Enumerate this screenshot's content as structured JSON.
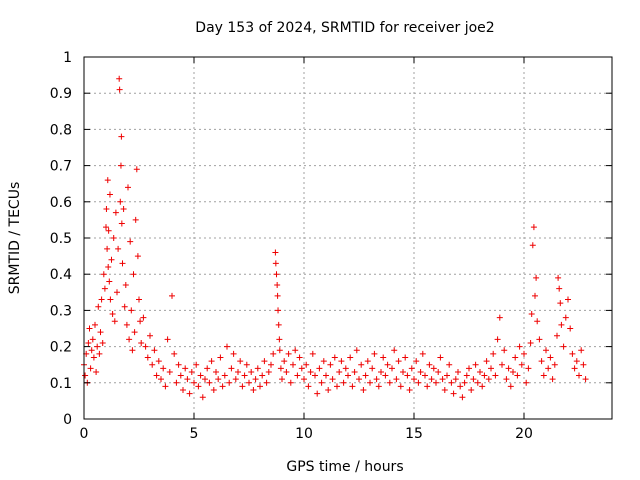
{
  "chart_data": {
    "type": "scatter",
    "title": "Day 153 of 2024, SRMTID for receiver joe2",
    "xlabel": "GPS time / hours",
    "ylabel": "SRMTID / TECUs",
    "xlim": [
      0,
      24
    ],
    "ylim": [
      0,
      1
    ],
    "xticks": [
      "0",
      "5",
      "10",
      "15",
      "20"
    ],
    "yticks": [
      "0",
      "0.1",
      "0.2",
      "0.3",
      "0.4",
      "0.5",
      "0.6",
      "0.7",
      "0.8",
      "0.9",
      "1"
    ],
    "grid": true,
    "marker": "plus",
    "color": "#ee0000",
    "series": [
      {
        "name": "SRMTID",
        "points": [
          [
            0.0,
            0.15
          ],
          [
            0.05,
            0.12
          ],
          [
            0.1,
            0.18
          ],
          [
            0.15,
            0.1
          ],
          [
            0.2,
            0.21
          ],
          [
            0.25,
            0.25
          ],
          [
            0.3,
            0.14
          ],
          [
            0.35,
            0.19
          ],
          [
            0.4,
            0.22
          ],
          [
            0.45,
            0.17
          ],
          [
            0.5,
            0.26
          ],
          [
            0.55,
            0.13
          ],
          [
            0.6,
            0.2
          ],
          [
            0.65,
            0.31
          ],
          [
            0.7,
            0.18
          ],
          [
            0.75,
            0.24
          ],
          [
            0.8,
            0.33
          ],
          [
            0.85,
            0.21
          ],
          [
            0.9,
            0.4
          ],
          [
            0.95,
            0.36
          ],
          [
            1.0,
            0.53
          ],
          [
            1.02,
            0.58
          ],
          [
            1.05,
            0.47
          ],
          [
            1.08,
            0.66
          ],
          [
            1.1,
            0.42
          ],
          [
            1.12,
            0.52
          ],
          [
            1.15,
            0.38
          ],
          [
            1.18,
            0.62
          ],
          [
            1.2,
            0.33
          ],
          [
            1.25,
            0.44
          ],
          [
            1.3,
            0.29
          ],
          [
            1.35,
            0.5
          ],
          [
            1.4,
            0.27
          ],
          [
            1.45,
            0.57
          ],
          [
            1.5,
            0.35
          ],
          [
            1.55,
            0.47
          ],
          [
            1.6,
            0.94
          ],
          [
            1.62,
            0.91
          ],
          [
            1.65,
            0.6
          ],
          [
            1.68,
            0.7
          ],
          [
            1.7,
            0.78
          ],
          [
            1.72,
            0.54
          ],
          [
            1.75,
            0.43
          ],
          [
            1.8,
            0.58
          ],
          [
            1.85,
            0.31
          ],
          [
            1.9,
            0.37
          ],
          [
            1.95,
            0.26
          ],
          [
            2.0,
            0.64
          ],
          [
            2.05,
            0.22
          ],
          [
            2.1,
            0.49
          ],
          [
            2.15,
            0.3
          ],
          [
            2.2,
            0.19
          ],
          [
            2.25,
            0.4
          ],
          [
            2.3,
            0.24
          ],
          [
            2.35,
            0.55
          ],
          [
            2.4,
            0.69
          ],
          [
            2.45,
            0.45
          ],
          [
            2.5,
            0.33
          ],
          [
            2.55,
            0.27
          ],
          [
            2.6,
            0.21
          ],
          [
            2.7,
            0.28
          ],
          [
            2.8,
            0.2
          ],
          [
            2.9,
            0.17
          ],
          [
            3.0,
            0.23
          ],
          [
            3.1,
            0.15
          ],
          [
            3.2,
            0.19
          ],
          [
            3.3,
            0.12
          ],
          [
            3.4,
            0.16
          ],
          [
            3.5,
            0.11
          ],
          [
            3.6,
            0.14
          ],
          [
            3.7,
            0.09
          ],
          [
            3.8,
            0.22
          ],
          [
            3.9,
            0.13
          ],
          [
            4.0,
            0.34
          ],
          [
            4.1,
            0.18
          ],
          [
            4.2,
            0.1
          ],
          [
            4.3,
            0.15
          ],
          [
            4.4,
            0.12
          ],
          [
            4.5,
            0.08
          ],
          [
            4.6,
            0.14
          ],
          [
            4.7,
            0.11
          ],
          [
            4.8,
            0.07
          ],
          [
            4.9,
            0.13
          ],
          [
            5.0,
            0.1
          ],
          [
            5.1,
            0.15
          ],
          [
            5.2,
            0.09
          ],
          [
            5.3,
            0.12
          ],
          [
            5.4,
            0.06
          ],
          [
            5.5,
            0.11
          ],
          [
            5.6,
            0.14
          ],
          [
            5.7,
            0.1
          ],
          [
            5.8,
            0.16
          ],
          [
            5.9,
            0.08
          ],
          [
            6.0,
            0.13
          ],
          [
            6.1,
            0.11
          ],
          [
            6.2,
            0.17
          ],
          [
            6.3,
            0.09
          ],
          [
            6.4,
            0.12
          ],
          [
            6.5,
            0.2
          ],
          [
            6.6,
            0.1
          ],
          [
            6.7,
            0.14
          ],
          [
            6.8,
            0.18
          ],
          [
            6.9,
            0.11
          ],
          [
            7.0,
            0.13
          ],
          [
            7.1,
            0.16
          ],
          [
            7.2,
            0.09
          ],
          [
            7.3,
            0.12
          ],
          [
            7.4,
            0.15
          ],
          [
            7.5,
            0.1
          ],
          [
            7.6,
            0.13
          ],
          [
            7.7,
            0.08
          ],
          [
            7.8,
            0.11
          ],
          [
            7.9,
            0.14
          ],
          [
            8.0,
            0.09
          ],
          [
            8.1,
            0.12
          ],
          [
            8.2,
            0.16
          ],
          [
            8.3,
            0.1
          ],
          [
            8.4,
            0.13
          ],
          [
            8.5,
            0.15
          ],
          [
            8.6,
            0.18
          ],
          [
            8.7,
            0.46
          ],
          [
            8.72,
            0.43
          ],
          [
            8.75,
            0.4
          ],
          [
            8.78,
            0.37
          ],
          [
            8.8,
            0.34
          ],
          [
            8.82,
            0.3
          ],
          [
            8.85,
            0.26
          ],
          [
            8.88,
            0.22
          ],
          [
            8.9,
            0.19
          ],
          [
            8.95,
            0.14
          ],
          [
            9.0,
            0.11
          ],
          [
            9.1,
            0.16
          ],
          [
            9.2,
            0.13
          ],
          [
            9.3,
            0.18
          ],
          [
            9.4,
            0.1
          ],
          [
            9.5,
            0.15
          ],
          [
            9.6,
            0.19
          ],
          [
            9.7,
            0.12
          ],
          [
            9.8,
            0.17
          ],
          [
            9.9,
            0.14
          ],
          [
            10.0,
            0.11
          ],
          [
            10.1,
            0.15
          ],
          [
            10.2,
            0.09
          ],
          [
            10.3,
            0.13
          ],
          [
            10.4,
            0.18
          ],
          [
            10.5,
            0.12
          ],
          [
            10.6,
            0.07
          ],
          [
            10.7,
            0.14
          ],
          [
            10.8,
            0.1
          ],
          [
            10.9,
            0.16
          ],
          [
            11.0,
            0.12
          ],
          [
            11.1,
            0.08
          ],
          [
            11.2,
            0.15
          ],
          [
            11.3,
            0.11
          ],
          [
            11.4,
            0.17
          ],
          [
            11.5,
            0.09
          ],
          [
            11.6,
            0.13
          ],
          [
            11.7,
            0.16
          ],
          [
            11.8,
            0.1
          ],
          [
            11.9,
            0.14
          ],
          [
            12.0,
            0.12
          ],
          [
            12.1,
            0.17
          ],
          [
            12.2,
            0.09
          ],
          [
            12.3,
            0.13
          ],
          [
            12.4,
            0.19
          ],
          [
            12.5,
            0.11
          ],
          [
            12.6,
            0.15
          ],
          [
            12.7,
            0.08
          ],
          [
            12.8,
            0.12
          ],
          [
            12.9,
            0.16
          ],
          [
            13.0,
            0.1
          ],
          [
            13.1,
            0.14
          ],
          [
            13.2,
            0.18
          ],
          [
            13.3,
            0.11
          ],
          [
            13.4,
            0.09
          ],
          [
            13.5,
            0.13
          ],
          [
            13.6,
            0.17
          ],
          [
            13.7,
            0.12
          ],
          [
            13.8,
            0.15
          ],
          [
            13.9,
            0.1
          ],
          [
            14.0,
            0.14
          ],
          [
            14.1,
            0.19
          ],
          [
            14.2,
            0.11
          ],
          [
            14.3,
            0.16
          ],
          [
            14.4,
            0.09
          ],
          [
            14.5,
            0.13
          ],
          [
            14.6,
            0.17
          ],
          [
            14.7,
            0.12
          ],
          [
            14.8,
            0.08
          ],
          [
            14.9,
            0.14
          ],
          [
            15.0,
            0.11
          ],
          [
            15.1,
            0.16
          ],
          [
            15.2,
            0.1
          ],
          [
            15.3,
            0.13
          ],
          [
            15.4,
            0.18
          ],
          [
            15.5,
            0.12
          ],
          [
            15.6,
            0.09
          ],
          [
            15.7,
            0.15
          ],
          [
            15.8,
            0.11
          ],
          [
            15.9,
            0.14
          ],
          [
            16.0,
            0.1
          ],
          [
            16.1,
            0.13
          ],
          [
            16.2,
            0.17
          ],
          [
            16.3,
            0.11
          ],
          [
            16.4,
            0.08
          ],
          [
            16.5,
            0.12
          ],
          [
            16.6,
            0.15
          ],
          [
            16.7,
            0.1
          ],
          [
            16.8,
            0.07
          ],
          [
            16.9,
            0.11
          ],
          [
            17.0,
            0.13
          ],
          [
            17.1,
            0.09
          ],
          [
            17.2,
            0.06
          ],
          [
            17.3,
            0.1
          ],
          [
            17.4,
            0.12
          ],
          [
            17.5,
            0.14
          ],
          [
            17.6,
            0.08
          ],
          [
            17.7,
            0.11
          ],
          [
            17.8,
            0.15
          ],
          [
            17.9,
            0.1
          ],
          [
            18.0,
            0.13
          ],
          [
            18.1,
            0.09
          ],
          [
            18.2,
            0.12
          ],
          [
            18.3,
            0.16
          ],
          [
            18.4,
            0.11
          ],
          [
            18.5,
            0.14
          ],
          [
            18.6,
            0.18
          ],
          [
            18.7,
            0.12
          ],
          [
            18.8,
            0.22
          ],
          [
            18.9,
            0.28
          ],
          [
            19.0,
            0.15
          ],
          [
            19.1,
            0.19
          ],
          [
            19.2,
            0.11
          ],
          [
            19.3,
            0.14
          ],
          [
            19.4,
            0.09
          ],
          [
            19.5,
            0.13
          ],
          [
            19.6,
            0.17
          ],
          [
            19.7,
            0.12
          ],
          [
            19.8,
            0.2
          ],
          [
            19.9,
            0.15
          ],
          [
            20.0,
            0.18
          ],
          [
            20.1,
            0.1
          ],
          [
            20.2,
            0.14
          ],
          [
            20.3,
            0.21
          ],
          [
            20.35,
            0.29
          ],
          [
            20.4,
            0.48
          ],
          [
            20.45,
            0.53
          ],
          [
            20.5,
            0.34
          ],
          [
            20.55,
            0.39
          ],
          [
            20.6,
            0.27
          ],
          [
            20.7,
            0.22
          ],
          [
            20.8,
            0.16
          ],
          [
            20.9,
            0.12
          ],
          [
            21.0,
            0.19
          ],
          [
            21.1,
            0.14
          ],
          [
            21.2,
            0.17
          ],
          [
            21.3,
            0.11
          ],
          [
            21.4,
            0.15
          ],
          [
            21.5,
            0.23
          ],
          [
            21.55,
            0.39
          ],
          [
            21.6,
            0.36
          ],
          [
            21.65,
            0.32
          ],
          [
            21.7,
            0.26
          ],
          [
            21.8,
            0.2
          ],
          [
            21.9,
            0.28
          ],
          [
            22.0,
            0.33
          ],
          [
            22.1,
            0.25
          ],
          [
            22.2,
            0.18
          ],
          [
            22.3,
            0.14
          ],
          [
            22.4,
            0.16
          ],
          [
            22.5,
            0.12
          ],
          [
            22.6,
            0.19
          ],
          [
            22.7,
            0.15
          ],
          [
            22.8,
            0.11
          ]
        ]
      }
    ]
  }
}
